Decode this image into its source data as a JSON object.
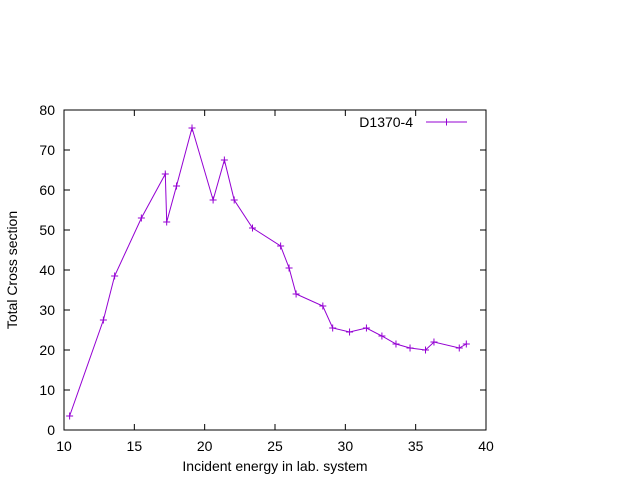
{
  "chart_data": {
    "type": "line",
    "title": "",
    "xlabel": "Incident energy in lab. system",
    "ylabel": "Total Cross section",
    "xlim": [
      10,
      40
    ],
    "ylim": [
      0,
      80
    ],
    "xticks": [
      "10",
      "15",
      "20",
      "25",
      "30",
      "35",
      "40"
    ],
    "yticks": [
      "0",
      "10",
      "20",
      "30",
      "40",
      "50",
      "60",
      "70",
      "80"
    ],
    "grid": false,
    "legend_position": "top-right",
    "series": [
      {
        "name": "D1370-4",
        "color": "#9400d3",
        "marker": "plus",
        "x": [
          10.4,
          12.8,
          13.6,
          15.5,
          17.2,
          17.3,
          18.0,
          19.1,
          20.6,
          21.4,
          22.1,
          23.4,
          25.4,
          26.0,
          26.5,
          28.4,
          29.1,
          30.3,
          31.5,
          32.6,
          33.6,
          34.6,
          35.7,
          36.3,
          38.1,
          38.6
        ],
        "y": [
          3.5,
          27.5,
          38.5,
          53.0,
          64.0,
          52.0,
          61.0,
          75.5,
          57.5,
          67.5,
          57.5,
          50.5,
          46.0,
          40.5,
          34.0,
          31.0,
          25.5,
          24.5,
          25.5,
          23.5,
          21.5,
          20.5,
          20.0,
          22.0,
          20.5,
          21.5
        ]
      }
    ]
  }
}
